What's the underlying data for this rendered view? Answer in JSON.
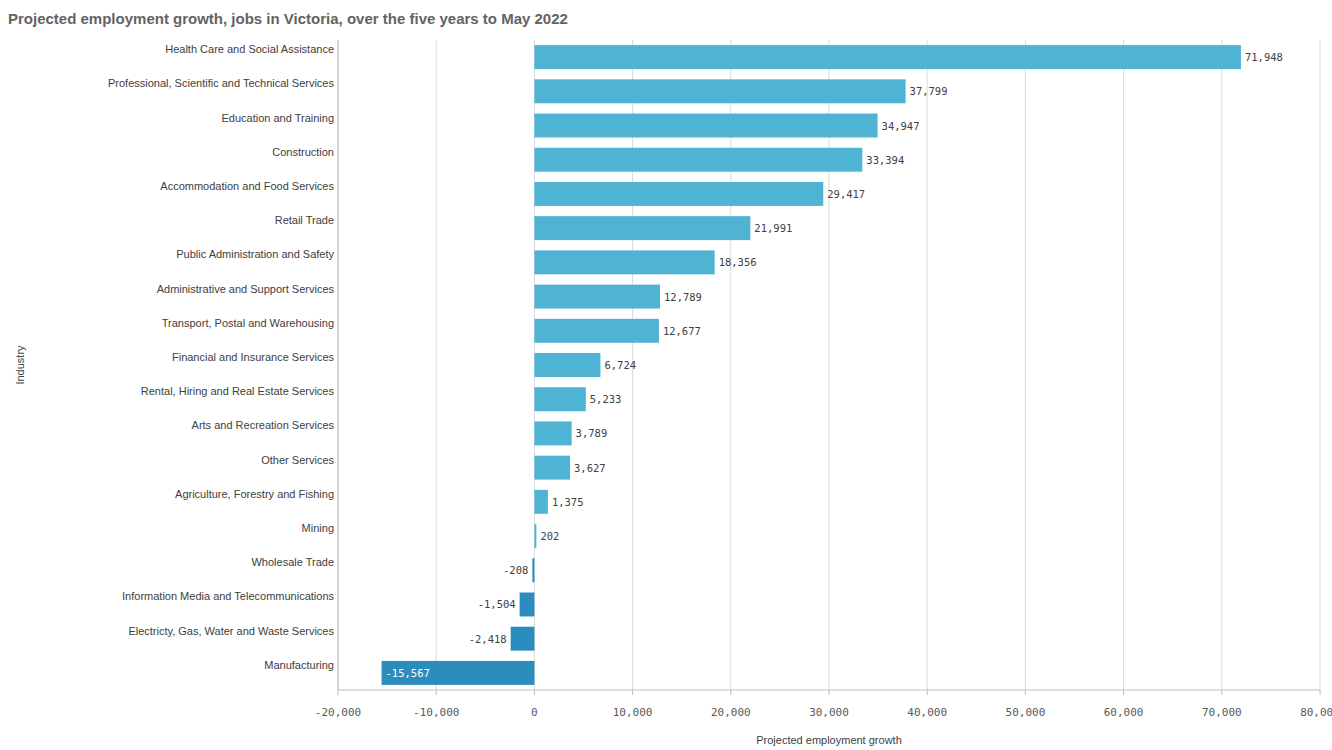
{
  "chart_data": {
    "type": "bar",
    "orientation": "horizontal",
    "title": "Projected employment growth, jobs in Victoria, over the five years to May 2022",
    "x_label": "Projected employment growth",
    "y_label": "Industry",
    "categories": [
      "Health Care and Social Assistance",
      "Professional, Scientific and Technical Services",
      "Education and Training",
      "Construction",
      "Accommodation and Food Services",
      "Retail Trade",
      "Public Administration and Safety",
      "Administrative and Support Services",
      "Transport, Postal and Warehousing",
      "Financial and Insurance Services",
      "Rental, Hiring and Real Estate Services",
      "Arts and Recreation Services",
      "Other Services",
      "Agriculture, Forestry and Fishing",
      "Mining",
      "Wholesale Trade",
      "Information Media and Telecommunications",
      "Electricty, Gas, Water and Waste Services",
      "Manufacturing"
    ],
    "values": [
      71948,
      37799,
      34947,
      33394,
      29417,
      21991,
      18356,
      12789,
      12677,
      6724,
      5233,
      3789,
      3627,
      1375,
      202,
      -208,
      -1504,
      -2418,
      -15567
    ],
    "value_labels": [
      "71,948",
      "37,799",
      "34,947",
      "33,394",
      "29,417",
      "21,991",
      "18,356",
      "12,789",
      "12,677",
      "6,724",
      "5,233",
      "3,789",
      "3,627",
      "1,375",
      "202",
      "-208",
      "-1,504",
      "-2,418",
      "-15,567"
    ],
    "colors": [
      "#4fb3d4",
      "#4fb3d4",
      "#4fb3d4",
      "#4fb3d4",
      "#4fb3d4",
      "#4fb3d4",
      "#4fb3d4",
      "#4fb3d4",
      "#4fb3d4",
      "#4fb3d4",
      "#4fb3d4",
      "#4fb3d4",
      "#4fb3d4",
      "#4fb3d4",
      "#4fb3d4",
      "#2b8cbe",
      "#2b8cbe",
      "#2b8cbe",
      "#2b8cbe"
    ],
    "xlim": [
      -20000,
      80000
    ],
    "xticks": [
      {
        "value": -20000,
        "label": "-20,000"
      },
      {
        "value": -10000,
        "label": "-10,000"
      },
      0,
      {
        "value": 10000,
        "label": "10,000"
      },
      {
        "value": 20000,
        "label": "20,000"
      },
      {
        "value": 30000,
        "label": "30,000"
      },
      {
        "value": 40000,
        "label": "40,000"
      },
      {
        "value": 50000,
        "label": "50,000"
      },
      {
        "value": 60000,
        "label": "60,000"
      },
      {
        "value": 70000,
        "label": "70,000"
      },
      {
        "value": 80000,
        "label": "80,000"
      }
    ],
    "grid": true,
    "data_labels": true
  }
}
